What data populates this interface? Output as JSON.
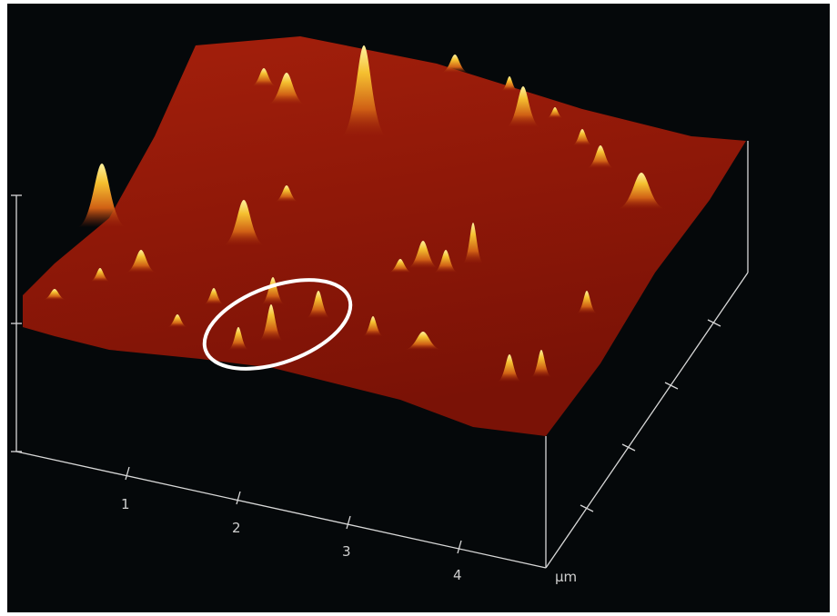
{
  "x_axis": {
    "ticks": [
      "1",
      "2",
      "3",
      "4"
    ],
    "unit": "µm"
  }
}
